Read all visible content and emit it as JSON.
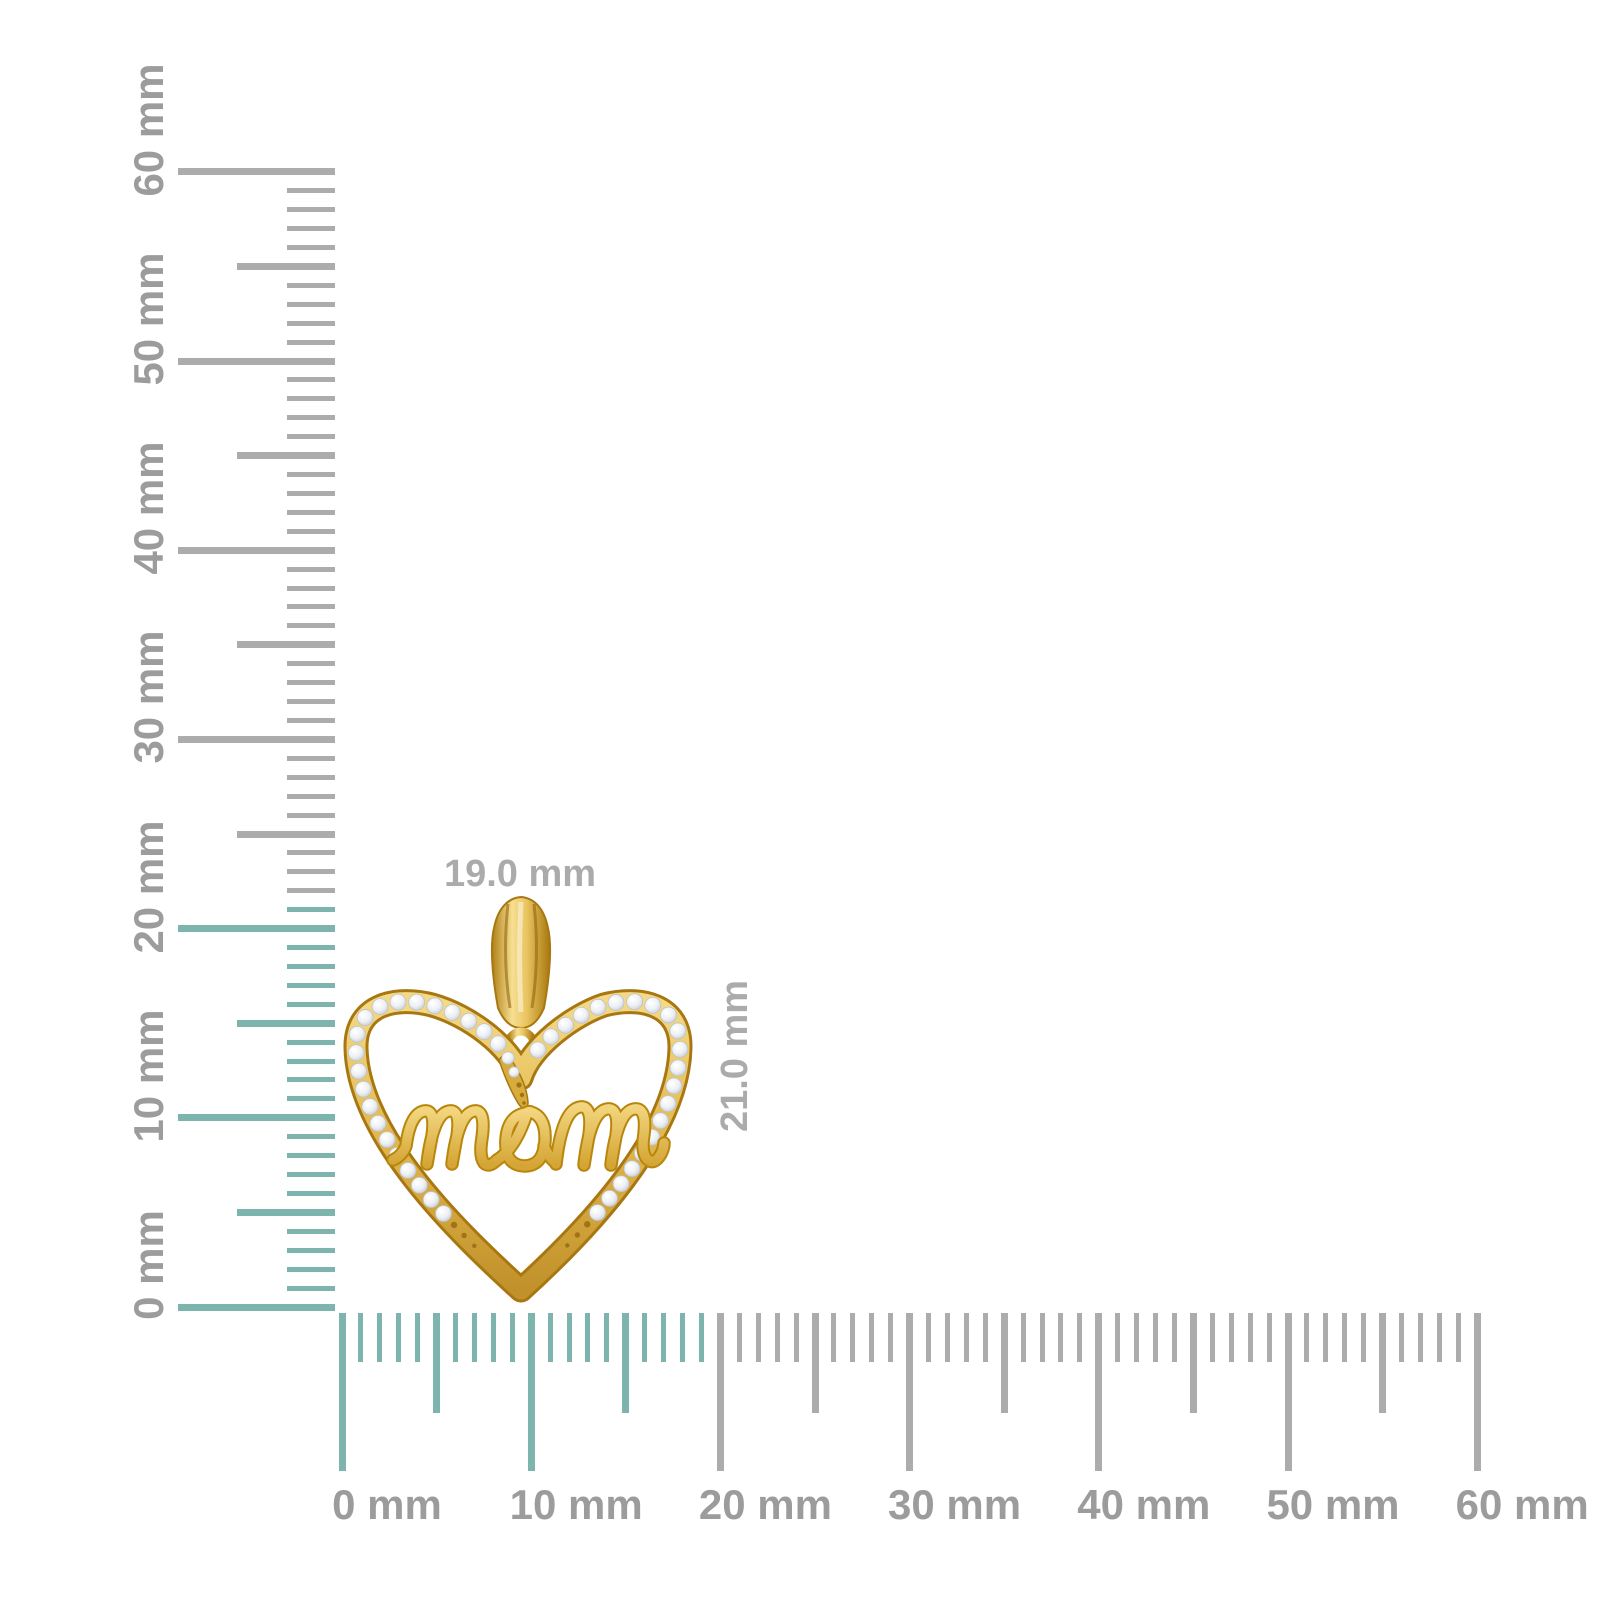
{
  "page": {
    "description": "Size diagram of a gold heart pendant engraved with a script word, set with round diamonds, shown against millimeter rulers"
  },
  "pendant": {
    "engraving": "mom",
    "gold_color": "#E3B94F",
    "gold_dark_color": "#A87711",
    "diamond_color": "#EDF0F4"
  },
  "measurements": {
    "width": "19.0 mm",
    "height": "21.0 mm"
  },
  "rulers": {
    "unit": "mm",
    "tick_color": "#ACACAC",
    "highlight_color": "#7DB5AE",
    "label_color": "#9C9C9C",
    "dim_label_color": "#ABABAB",
    "horizontal": {
      "labels": [
        "0 mm",
        "10 mm",
        "20 mm",
        "30 mm",
        "40 mm",
        "50 mm",
        "60 mm"
      ],
      "max_mm": 60,
      "highlight_to_mm": 19
    },
    "vertical": {
      "labels": [
        "0 mm",
        "10 mm",
        "20 mm",
        "30 mm",
        "40 mm",
        "50 mm",
        "60 mm"
      ],
      "max_mm": 60,
      "highlight_to_mm": 21
    }
  }
}
